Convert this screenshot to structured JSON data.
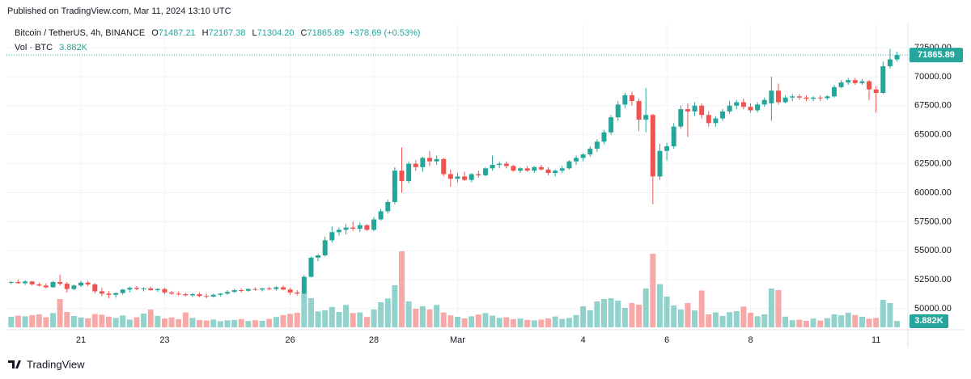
{
  "published": "Published on TradingView.com, Mar 11, 2024 13:10 UTC",
  "footer": "TradingView",
  "header": {
    "symbol": "Bitcoin / TetherUS, 4h, BINANCE",
    "fields": [
      {
        "key": "O",
        "text": "71487.21"
      },
      {
        "key": "H",
        "text": "72167.38"
      },
      {
        "key": "L",
        "text": "71304.20"
      },
      {
        "key": "C",
        "text": "71865.89"
      }
    ],
    "change": "+378.69 (+0.53%)"
  },
  "chart_data": {
    "type": "candlestick",
    "up_color": "#26a69a",
    "down_color": "#ef5350",
    "grid": true,
    "categories": [
      null,
      null,
      null,
      null,
      null,
      null,
      null,
      null,
      null,
      null,
      "21",
      null,
      null,
      null,
      null,
      null,
      null,
      null,
      null,
      null,
      null,
      null,
      "23",
      null,
      null,
      null,
      null,
      null,
      null,
      null,
      null,
      null,
      null,
      null,
      null,
      null,
      null,
      null,
      null,
      null,
      "26",
      null,
      null,
      null,
      null,
      null,
      null,
      null,
      null,
      null,
      null,
      null,
      "28",
      null,
      null,
      null,
      null,
      null,
      null,
      null,
      null,
      null,
      null,
      null,
      "Mar",
      null,
      null,
      null,
      null,
      null,
      null,
      null,
      null,
      null,
      null,
      null,
      null,
      null,
      null,
      null,
      null,
      null,
      "4",
      null,
      null,
      null,
      null,
      null,
      null,
      null,
      null,
      null,
      null,
      null,
      "6",
      null,
      null,
      null,
      null,
      null,
      null,
      null,
      null,
      null,
      null,
      null,
      "8",
      null,
      null,
      null,
      null,
      null,
      null,
      null,
      null,
      null,
      null,
      null,
      null,
      null,
      null,
      null,
      null,
      null,
      "11",
      null,
      null,
      null
    ],
    "open": [
      52250,
      52300,
      52200,
      52350,
      52100,
      52000,
      51850,
      52300,
      52150,
      51700,
      52000,
      52250,
      52100,
      51500,
      51300,
      51200,
      51350,
      51650,
      51800,
      51700,
      51750,
      51600,
      51700,
      51400,
      51300,
      51250,
      51150,
      51250,
      51100,
      51050,
      51200,
      51300,
      51450,
      51600,
      51550,
      51700,
      51650,
      51750,
      51700,
      51850,
      51650,
      51400,
      51300,
      52750,
      54400,
      54600,
      55900,
      56600,
      56800,
      57000,
      56900,
      57200,
      56800,
      57700,
      58400,
      59200,
      61900,
      61000,
      62500,
      62200,
      63000,
      62700,
      62900,
      61600,
      61200,
      61400,
      61100,
      61600,
      61500,
      62100,
      62400,
      62500,
      62300,
      61900,
      62100,
      61900,
      62200,
      62000,
      61700,
      61900,
      62100,
      62700,
      63000,
      63300,
      63800,
      64400,
      65200,
      66500,
      67600,
      68400,
      67900,
      66300,
      66700,
      61400,
      63600,
      64000,
      65700,
      67200,
      67000,
      67500,
      66700,
      66000,
      66400,
      67000,
      67500,
      67800,
      67400,
      67100,
      67600,
      67700,
      68800,
      67800,
      68200,
      68300,
      68200,
      68100,
      68200,
      68150,
      68300,
      69100,
      69500,
      69700,
      69450,
      69600,
      68900,
      68600,
      70900,
      71487.21
    ],
    "high": [
      52400,
      52500,
      52450,
      52400,
      52250,
      52200,
      52400,
      52950,
      52300,
      52100,
      52400,
      52400,
      52200,
      51800,
      51500,
      51400,
      51700,
      51900,
      51950,
      51850,
      51900,
      51750,
      51800,
      51550,
      51500,
      51400,
      51350,
      51400,
      51300,
      51300,
      51350,
      51600,
      51700,
      51750,
      51750,
      51850,
      51800,
      51900,
      51950,
      52000,
      51800,
      51600,
      52900,
      54500,
      54700,
      56200,
      57100,
      57000,
      57300,
      57500,
      57400,
      57300,
      57900,
      58600,
      59400,
      62200,
      63900,
      62700,
      62800,
      63100,
      63600,
      63200,
      63000,
      62000,
      61700,
      61800,
      61700,
      61900,
      62200,
      63200,
      62700,
      62700,
      62400,
      62200,
      62300,
      62300,
      62400,
      62200,
      62000,
      62300,
      62800,
      63200,
      63400,
      64000,
      64600,
      65400,
      66700,
      67900,
      68600,
      68700,
      68100,
      69000,
      66800,
      64200,
      64300,
      66000,
      67500,
      67700,
      67800,
      67700,
      67000,
      66600,
      67200,
      67900,
      68000,
      68100,
      67700,
      67800,
      68200,
      70000,
      69400,
      68400,
      68500,
      68500,
      68400,
      68300,
      68400,
      68400,
      69300,
      69700,
      69900,
      69900,
      69800,
      69700,
      69200,
      71300,
      72400,
      72167.38
    ],
    "low": [
      52100,
      52150,
      52050,
      52000,
      51900,
      51750,
      51800,
      52000,
      51400,
      51600,
      51900,
      51950,
      51300,
      51100,
      50900,
      50950,
      51200,
      51400,
      51600,
      51500,
      51550,
      51450,
      51250,
      51200,
      51100,
      51050,
      51000,
      51000,
      50900,
      50950,
      51050,
      51200,
      51350,
      51400,
      51450,
      51550,
      51500,
      51600,
      51550,
      51600,
      51200,
      51150,
      51250,
      52700,
      54100,
      54500,
      55700,
      56300,
      56400,
      56700,
      56600,
      56700,
      56700,
      57600,
      58200,
      59000,
      60000,
      60800,
      61900,
      61800,
      62300,
      62400,
      61400,
      60500,
      60900,
      61000,
      60900,
      61300,
      61400,
      61900,
      62100,
      62100,
      61800,
      61700,
      61800,
      61700,
      61900,
      61500,
      61400,
      61700,
      62000,
      62400,
      62700,
      63100,
      63500,
      64200,
      65000,
      66200,
      67300,
      67500,
      65300,
      65200,
      59000,
      61100,
      62800,
      63800,
      65500,
      64800,
      66600,
      66400,
      65700,
      65700,
      66200,
      66800,
      67200,
      67200,
      66900,
      66900,
      67400,
      66200,
      67600,
      67700,
      67900,
      68000,
      67900,
      67900,
      67900,
      68000,
      68200,
      69000,
      69300,
      69300,
      69300,
      68000,
      66900,
      68500,
      70700,
      71304.2
    ],
    "close": [
      52300,
      52200,
      52350,
      52100,
      52000,
      51850,
      52300,
      52150,
      51700,
      52000,
      52250,
      52100,
      51500,
      51300,
      51200,
      51350,
      51650,
      51800,
      51700,
      51750,
      51600,
      51700,
      51400,
      51300,
      51250,
      51150,
      51250,
      51100,
      51050,
      51200,
      51300,
      51450,
      51600,
      51550,
      51700,
      51650,
      51750,
      51700,
      51850,
      51650,
      51400,
      51300,
      52750,
      54400,
      54600,
      55900,
      56600,
      56800,
      57000,
      56900,
      57200,
      56800,
      57700,
      58400,
      59200,
      61900,
      61000,
      62500,
      62200,
      63000,
      62700,
      62900,
      61600,
      61200,
      61400,
      61100,
      61600,
      61500,
      62100,
      62400,
      62500,
      62300,
      61900,
      62100,
      61900,
      62200,
      62000,
      61700,
      61900,
      62100,
      62700,
      63000,
      63300,
      63800,
      64400,
      65200,
      66500,
      67600,
      68400,
      67900,
      66300,
      66700,
      61400,
      63600,
      64000,
      65700,
      67200,
      67000,
      67500,
      66700,
      66000,
      66400,
      67000,
      67500,
      67800,
      67400,
      67100,
      67600,
      68000,
      68800,
      67800,
      68200,
      68300,
      68200,
      68100,
      68200,
      68150,
      68300,
      69100,
      69500,
      69700,
      69450,
      69600,
      68900,
      68600,
      70900,
      71487.2,
      71865.89
    ],
    "ylim": [
      48400,
      74520
    ],
    "yticks": [
      {
        "value": 50000,
        "label": "50000.00"
      },
      {
        "value": 52500,
        "label": "52500.00"
      },
      {
        "value": 55000,
        "label": "55000.00"
      },
      {
        "value": 57500,
        "label": "57500.00"
      },
      {
        "value": 60000,
        "label": "60000.00"
      },
      {
        "value": 62500,
        "label": "62500.00"
      },
      {
        "value": 65000,
        "label": "65000.00"
      },
      {
        "value": 67500,
        "label": "67500.00"
      },
      {
        "value": 70000,
        "label": "70000.00"
      },
      {
        "value": 72500,
        "label": "72500.00"
      }
    ],
    "volume": {
      "name": "Vol · BTC",
      "last_label": "3.882K",
      "ylim": [
        0,
        50000
      ],
      "values": [
        6500,
        7200,
        6800,
        7500,
        8000,
        6200,
        8800,
        17500,
        9500,
        7000,
        6000,
        5500,
        8200,
        7800,
        6600,
        5800,
        7300,
        4800,
        6200,
        8500,
        11000,
        7000,
        5400,
        6100,
        5000,
        9200,
        5800,
        4500,
        4200,
        4800,
        3800,
        4300,
        4600,
        5100,
        3900,
        4400,
        4000,
        5200,
        6400,
        7600,
        8300,
        9000,
        21000,
        18000,
        9800,
        10500,
        12600,
        9500,
        13800,
        8800,
        9200,
        6400,
        11000,
        15500,
        17800,
        26000,
        47000,
        16000,
        11500,
        13000,
        11000,
        13800,
        9200,
        7400,
        6500,
        5500,
        6800,
        7900,
        8800,
        7200,
        5800,
        6200,
        5000,
        5400,
        4600,
        4300,
        4800,
        5500,
        6700,
        5200,
        5800,
        7600,
        13000,
        10500,
        16000,
        17500,
        18000,
        16500,
        12000,
        15000,
        14000,
        24000,
        45500,
        26700,
        19000,
        13500,
        11000,
        15000,
        10400,
        22800,
        8000,
        9200,
        7000,
        9400,
        10000,
        12800,
        9000,
        6800,
        8000,
        24000,
        23000,
        6600,
        4400,
        4700,
        4000,
        5400,
        4200,
        5600,
        8000,
        7400,
        9000,
        7600,
        6500,
        5300,
        5800,
        17000,
        15000,
        3882
      ]
    }
  }
}
